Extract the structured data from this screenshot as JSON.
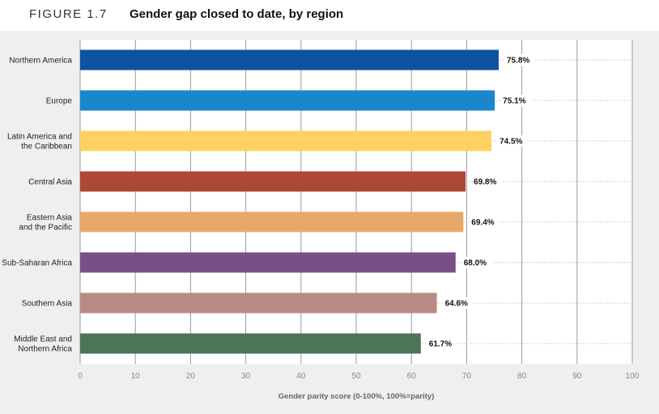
{
  "figure": {
    "label": "FIGURE 1.7",
    "title": "Gender gap closed to date, by region"
  },
  "chart_data": {
    "type": "bar",
    "orientation": "horizontal",
    "categories": [
      "Northern America",
      "Europe",
      "Latin America and the Caribbean",
      "Central Asia",
      "Eastern Asia and the Pacific",
      "Sub-Saharan Africa",
      "Southern Asia",
      "Middle East and Northern Africa"
    ],
    "category_lines": [
      [
        "Northern America"
      ],
      [
        "Europe"
      ],
      [
        "Latin America and",
        "the Caribbean"
      ],
      [
        "Central Asia"
      ],
      [
        "Eastern Asia",
        "and the Pacific"
      ],
      [
        "Sub-Saharan Africa"
      ],
      [
        "Southern Asia"
      ],
      [
        "Middle East and",
        "Northern Africa"
      ]
    ],
    "values": [
      75.8,
      75.1,
      74.5,
      69.8,
      69.4,
      68.0,
      64.6,
      61.7
    ],
    "value_labels": [
      "75.8%",
      "75.1%",
      "74.5%",
      "69.8%",
      "69.4%",
      "68.0%",
      "64.6%",
      "61.7%"
    ],
    "colors": [
      "#0c53a0",
      "#1a86cb",
      "#fdd262",
      "#ac4834",
      "#e8a86a",
      "#7a4f87",
      "#b98a83",
      "#4c7458"
    ],
    "xlim": [
      0,
      100
    ],
    "xticks": [
      0,
      10,
      20,
      30,
      40,
      50,
      60,
      70,
      80,
      90,
      100
    ],
    "xlabel": "Gender parity score (0-100%, 100%=parity)",
    "ylabel": "",
    "grid": true
  }
}
